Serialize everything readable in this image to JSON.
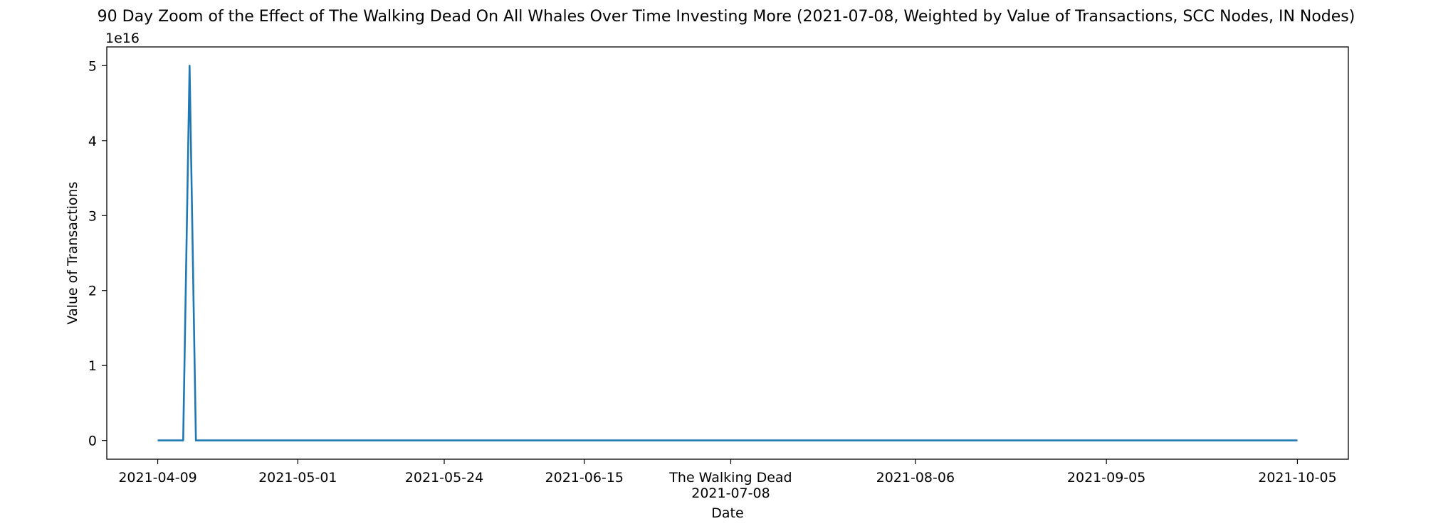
{
  "chart_data": {
    "type": "line",
    "title": "90 Day Zoom of the Effect of The Walking Dead On All Whales Over Time Investing More (2021-07-08, Weighted by Value of Transactions, SCC Nodes, IN Nodes)",
    "xlabel": "Date",
    "ylabel": "Value of Transactions",
    "y_offset_text": "1e16",
    "y_scale_multiplier": 1e+16,
    "xlim": [
      "2021-04-01",
      "2021-10-13"
    ],
    "ylim": [
      -0.25,
      5.25
    ],
    "grid": false,
    "line_color": "#1f77b4",
    "x_ticks": [
      {
        "date": "2021-04-09",
        "label": "2021-04-09"
      },
      {
        "date": "2021-05-01",
        "label": "2021-05-01"
      },
      {
        "date": "2021-05-24",
        "label": "2021-05-24"
      },
      {
        "date": "2021-06-15",
        "label": "2021-06-15"
      },
      {
        "date": "2021-07-08",
        "label": "2021-07-08"
      },
      {
        "date": "2021-08-06",
        "label": "2021-08-06"
      },
      {
        "date": "2021-09-05",
        "label": "2021-09-05"
      },
      {
        "date": "2021-10-05",
        "label": "2021-10-05"
      }
    ],
    "y_ticks": [
      0,
      1,
      2,
      3,
      4,
      5
    ],
    "annotation": {
      "date": "2021-07-08",
      "label": "The Walking Dead"
    },
    "series": [
      {
        "x": [
          "2021-04-09",
          "2021-04-13",
          "2021-04-14",
          "2021-04-15",
          "2021-10-05"
        ],
        "y": [
          0,
          0,
          5,
          0,
          0
        ]
      }
    ]
  }
}
